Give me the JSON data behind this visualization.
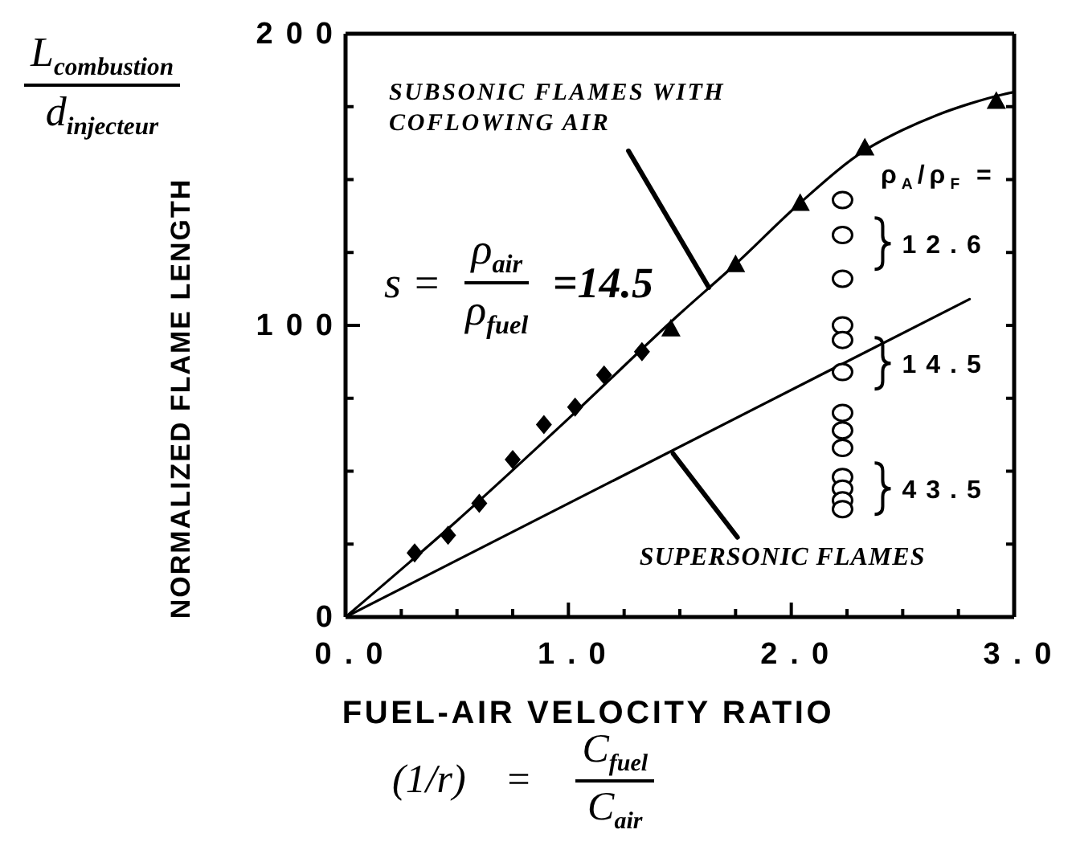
{
  "chart_data": {
    "type": "line",
    "xlabel": "FUEL-AIR VELOCITY RATIO",
    "ylabel": "NORMALIZED FLAME LENGTH",
    "xlim": [
      0,
      3
    ],
    "ylim": [
      0,
      200
    ],
    "xticks": [
      {
        "value": 0,
        "label": "0.0"
      },
      {
        "value": 0.25,
        "label": null
      },
      {
        "value": 0.5,
        "label": null
      },
      {
        "value": 0.75,
        "label": null
      },
      {
        "value": 1,
        "label": "1.0"
      },
      {
        "value": 1.25,
        "label": null
      },
      {
        "value": 1.5,
        "label": null
      },
      {
        "value": 1.75,
        "label": null
      },
      {
        "value": 2,
        "label": "2.0"
      },
      {
        "value": 2.25,
        "label": null
      },
      {
        "value": 2.5,
        "label": null
      },
      {
        "value": 2.75,
        "label": null
      },
      {
        "value": 3,
        "label": "3.0"
      }
    ],
    "yticks": [
      0,
      {
        "value": 25,
        "label": null
      },
      {
        "value": 50,
        "label": null
      },
      {
        "value": 75,
        "label": null
      },
      100,
      {
        "value": 125,
        "label": null
      },
      {
        "value": 150,
        "label": null
      },
      {
        "value": 175,
        "label": null
      },
      200
    ],
    "line_style": "solid",
    "series": [
      {
        "color": "#000000",
        "x": [
          0,
          0.5,
          1,
          1.5,
          1.75,
          2.04,
          2.33,
          2.5,
          2.65,
          2.8,
          2.94,
          3
        ],
        "values": [
          0,
          33,
          68,
          104,
          121,
          142,
          160,
          167,
          172,
          176,
          179,
          180
        ]
      },
      {
        "color": "#000000",
        "x": [
          0,
          2.8
        ],
        "values": [
          0,
          109
        ]
      },
      {
        "type": "scatter",
        "marker": "diamond",
        "color": "#000000",
        "x": [
          0.31,
          0.46,
          0.6,
          0.75,
          0.89,
          1.03,
          1.16,
          1.33
        ],
        "values": [
          22,
          28,
          39,
          54,
          66,
          72,
          83,
          91
        ]
      },
      {
        "type": "scatter",
        "marker": "triangle",
        "color": "#000000",
        "x": [
          1.46,
          1.75,
          2.04,
          2.33,
          2.92
        ],
        "values": [
          99,
          121,
          142,
          161,
          177
        ]
      },
      {
        "type": "scatter",
        "marker": "circle",
        "color": "#000000",
        "x": [
          2.23,
          2.23,
          2.23,
          2.23,
          2.23,
          2.23,
          2.23,
          2.23,
          2.23,
          2.23,
          2.23,
          2.23,
          2.23
        ],
        "values": [
          143,
          131,
          116,
          100,
          95,
          84,
          70,
          64,
          58,
          48,
          44,
          40,
          37
        ]
      }
    ],
    "annotations": [
      "L$_{combustion}$ d$_{injecteur}$",
      "(1/r) = C$_{fuel}$ C$_{air}$",
      {
        "text": "SUBSONIC FLAMES WITH COFLOWING AIR",
        "x": 1.63,
        "y": 113
      },
      {
        "text": "SUPERSONIC FLAMES",
        "x": 1.47,
        "y": 56
      },
      "s = ρ$_{air}$ ρ$_{fuel}$ =14.5",
      "ρ$_{A}$/ρ$_{F}$ =",
      {
        "text": "12.6",
        "x": 2.23,
        "y": 128
      },
      {
        "text": "14.5",
        "x": 2.23,
        "y": 87
      },
      {
        "text": "43.5",
        "x": 2.23,
        "y": 44
      }
    ]
  }
}
